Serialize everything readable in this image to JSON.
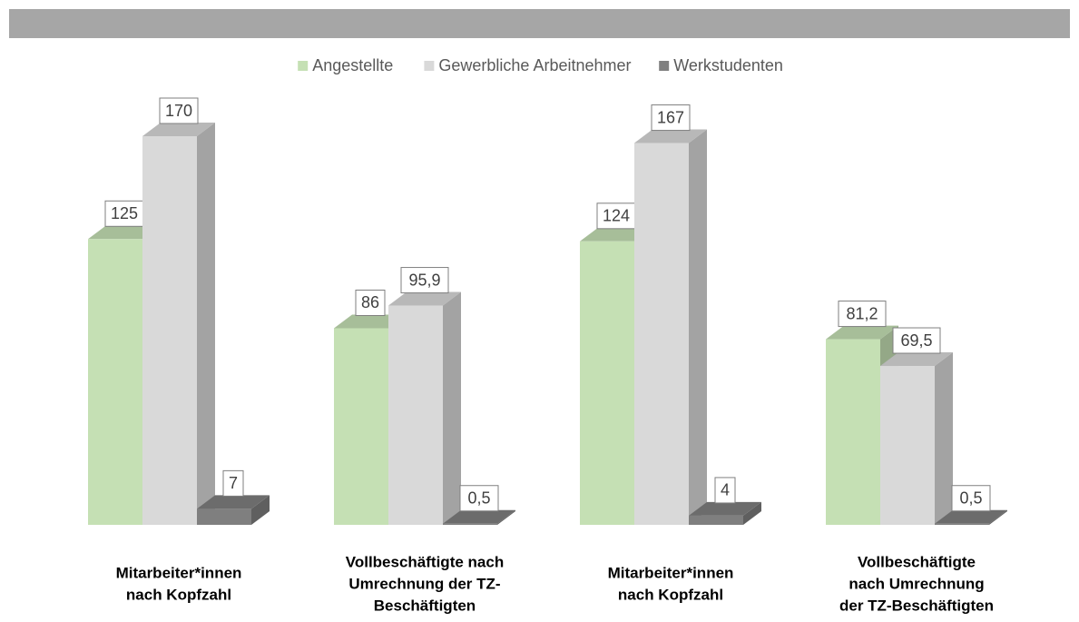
{
  "chart_data": {
    "type": "bar3d",
    "categories": [
      [
        "Mitarbeiter*innen",
        "nach Kopfzahl"
      ],
      [
        "Vollbeschäftigte nach",
        "Umrechnung der TZ-",
        "Beschäftigten"
      ],
      [
        "Mitarbeiter*innen",
        "nach Kopfzahl"
      ],
      [
        "Vollbeschäftigte",
        "nach Umrechnung",
        "der TZ-Beschäftigten"
      ]
    ],
    "series": [
      {
        "name": "Angestellte",
        "color": "#c5e0b4",
        "values": [
          125,
          86,
          124,
          81.2
        ],
        "value_labels": [
          "125",
          "86",
          "124",
          "81,2"
        ]
      },
      {
        "name": "Gewerbliche Arbeitnehmer",
        "color": "#d9d9d9",
        "values": [
          170,
          95.9,
          167,
          69.5
        ],
        "value_labels": [
          "170",
          "95,9",
          "167",
          "69,5"
        ]
      },
      {
        "name": "Werkstudenten",
        "color": "#7f7f7f",
        "values": [
          7,
          0.5,
          4,
          0.5
        ],
        "value_labels": [
          "7",
          "0,5",
          "4",
          "0,5"
        ]
      }
    ]
  }
}
